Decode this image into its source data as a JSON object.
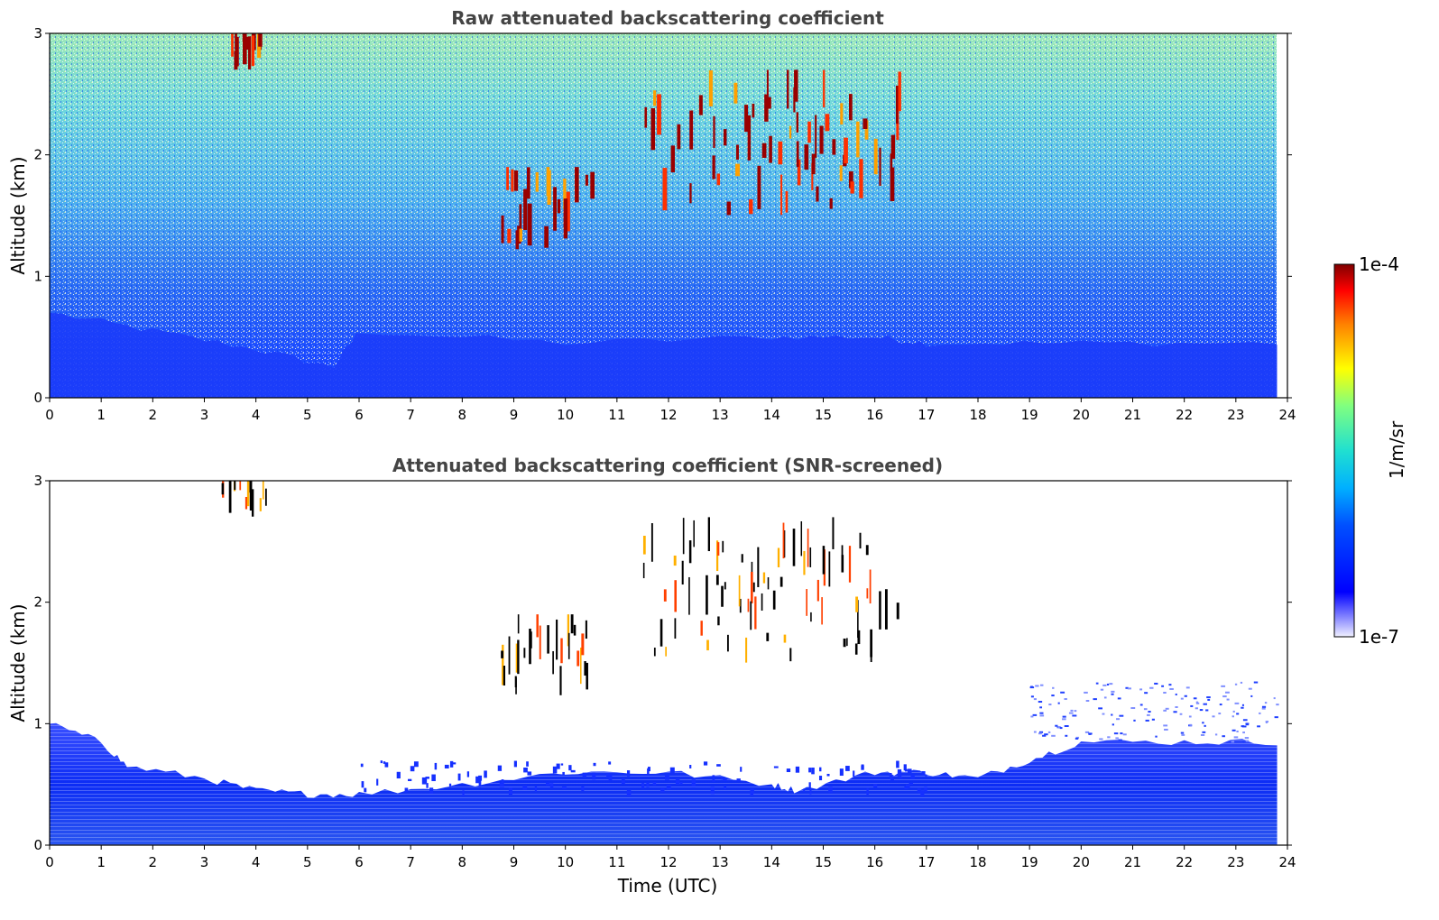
{
  "chart_data": [
    {
      "type": "heatmap",
      "title": "Raw attenuated backscattering coefficient",
      "xlabel": "",
      "ylabel": "Altitude (km)",
      "xlim": [
        0,
        24
      ],
      "ylim": [
        0,
        3
      ],
      "xticks": [
        "0",
        "1",
        "2",
        "3",
        "4",
        "5",
        "6",
        "7",
        "8",
        "9",
        "10",
        "11",
        "12",
        "13",
        "14",
        "15",
        "16",
        "17",
        "18",
        "19",
        "20",
        "21",
        "22",
        "23",
        "24"
      ],
      "yticks": [
        "0",
        "1",
        "2",
        "3"
      ],
      "data_end_time": 23.8,
      "features": [
        {
          "label": "boundary-layer",
          "top_profile_km": [
            [
              0,
              0.7
            ],
            [
              2,
              0.55
            ],
            [
              4,
              0.4
            ],
            [
              5.5,
              0.25
            ],
            [
              6,
              0.55
            ],
            [
              10,
              0.45
            ],
            [
              14,
              0.5
            ],
            [
              16,
              0.5
            ],
            [
              17,
              0.45
            ],
            [
              20,
              0.45
            ],
            [
              23.8,
              0.45
            ]
          ]
        },
        {
          "label": "cloud",
          "time_range": [
            3.3,
            4.2
          ],
          "alt_range_km": [
            2.7,
            3.0
          ]
        },
        {
          "label": "cloud",
          "time_range": [
            8.7,
            10.5
          ],
          "alt_range_km": [
            1.2,
            1.9
          ]
        },
        {
          "label": "cloud",
          "time_range": [
            11.5,
            16.5
          ],
          "alt_range_km": [
            1.5,
            2.7
          ]
        }
      ]
    },
    {
      "type": "heatmap",
      "title": "Attenuated backscattering coefficient (SNR-screened)",
      "xlabel": "Time (UTC)",
      "ylabel": "Altitude (km)",
      "xlim": [
        0,
        24
      ],
      "ylim": [
        0,
        3
      ],
      "xticks": [
        "0",
        "1",
        "2",
        "3",
        "4",
        "5",
        "6",
        "7",
        "8",
        "9",
        "10",
        "11",
        "12",
        "13",
        "14",
        "15",
        "16",
        "17",
        "18",
        "19",
        "20",
        "21",
        "22",
        "23",
        "24"
      ],
      "yticks": [
        "0",
        "1",
        "2",
        "3"
      ],
      "data_end_time": 23.8,
      "screened_top_profile_km": [
        [
          0,
          1.0
        ],
        [
          1,
          0.85
        ],
        [
          1.5,
          0.65
        ],
        [
          3,
          0.55
        ],
        [
          4,
          0.45
        ],
        [
          5,
          0.42
        ],
        [
          6,
          0.42
        ],
        [
          8,
          0.5
        ],
        [
          10,
          0.6
        ],
        [
          12,
          0.6
        ],
        [
          14,
          0.5
        ],
        [
          14.5,
          0.45
        ],
        [
          16,
          0.6
        ],
        [
          17,
          0.6
        ],
        [
          18,
          0.55
        ],
        [
          19,
          0.7
        ],
        [
          20,
          0.85
        ],
        [
          22,
          0.85
        ],
        [
          23.8,
          0.85
        ]
      ]
    }
  ],
  "colorbar": {
    "min_label": "1e-7",
    "max_label": "1e-4",
    "unit_label": "1/m/sr",
    "colormap": "jet",
    "scale": "log"
  }
}
